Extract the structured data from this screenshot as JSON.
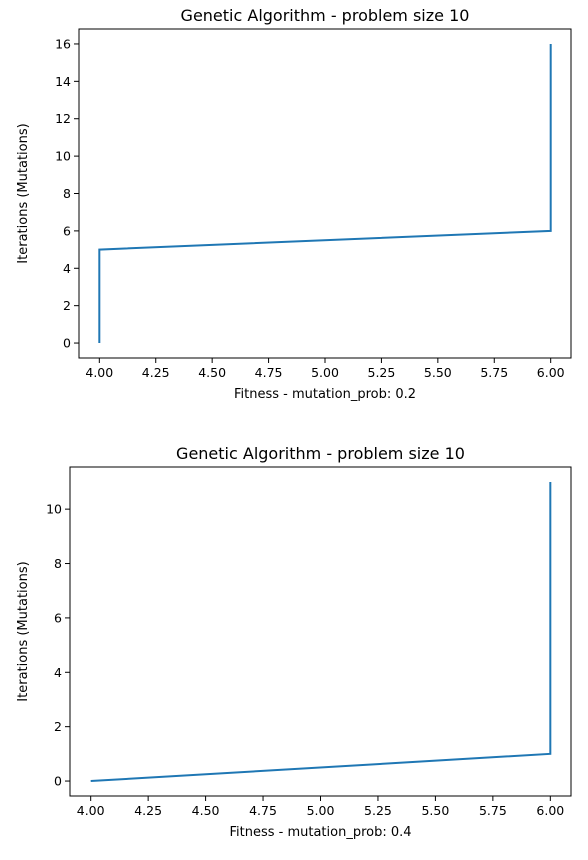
{
  "chart_data": [
    {
      "type": "line",
      "title": "Genetic Algorithm - problem size 10",
      "xlabel": "Fitness - mutation_prob: 0.2",
      "ylabel": "Iterations (Mutations)",
      "xlim": [
        3.91,
        6.09
      ],
      "ylim": [
        -0.8,
        16.8
      ],
      "xticks": [
        4.0,
        4.25,
        4.5,
        4.75,
        5.0,
        5.25,
        5.5,
        5.75,
        6.0
      ],
      "xtick_labels": [
        "4.00",
        "4.25",
        "4.50",
        "4.75",
        "5.00",
        "5.25",
        "5.50",
        "5.75",
        "6.00"
      ],
      "yticks": [
        0,
        2,
        4,
        6,
        8,
        10,
        12,
        14,
        16
      ],
      "ytick_labels": [
        "0",
        "2",
        "4",
        "6",
        "8",
        "10",
        "12",
        "14",
        "16"
      ],
      "grid": false,
      "color": "#1f77b4",
      "series": [
        {
          "x": [
            4,
            4,
            6,
            6
          ],
          "y": [
            0,
            5,
            6,
            16
          ]
        }
      ]
    },
    {
      "type": "line",
      "title": "Genetic Algorithm - problem size 10",
      "xlabel": "Fitness - mutation_prob: 0.4",
      "ylabel": "Iterations (Mutations)",
      "xlim": [
        3.91,
        6.09
      ],
      "ylim": [
        -0.55,
        11.55
      ],
      "xticks": [
        4.0,
        4.25,
        4.5,
        4.75,
        5.0,
        5.25,
        5.5,
        5.75,
        6.0
      ],
      "xtick_labels": [
        "4.00",
        "4.25",
        "4.50",
        "4.75",
        "5.00",
        "5.25",
        "5.50",
        "5.75",
        "6.00"
      ],
      "yticks": [
        0,
        2,
        4,
        6,
        8,
        10
      ],
      "ytick_labels": [
        "0",
        "2",
        "4",
        "6",
        "8",
        "10"
      ],
      "grid": false,
      "color": "#1f77b4",
      "series": [
        {
          "x": [
            4,
            6,
            6
          ],
          "y": [
            0,
            1,
            11
          ]
        }
      ]
    }
  ]
}
